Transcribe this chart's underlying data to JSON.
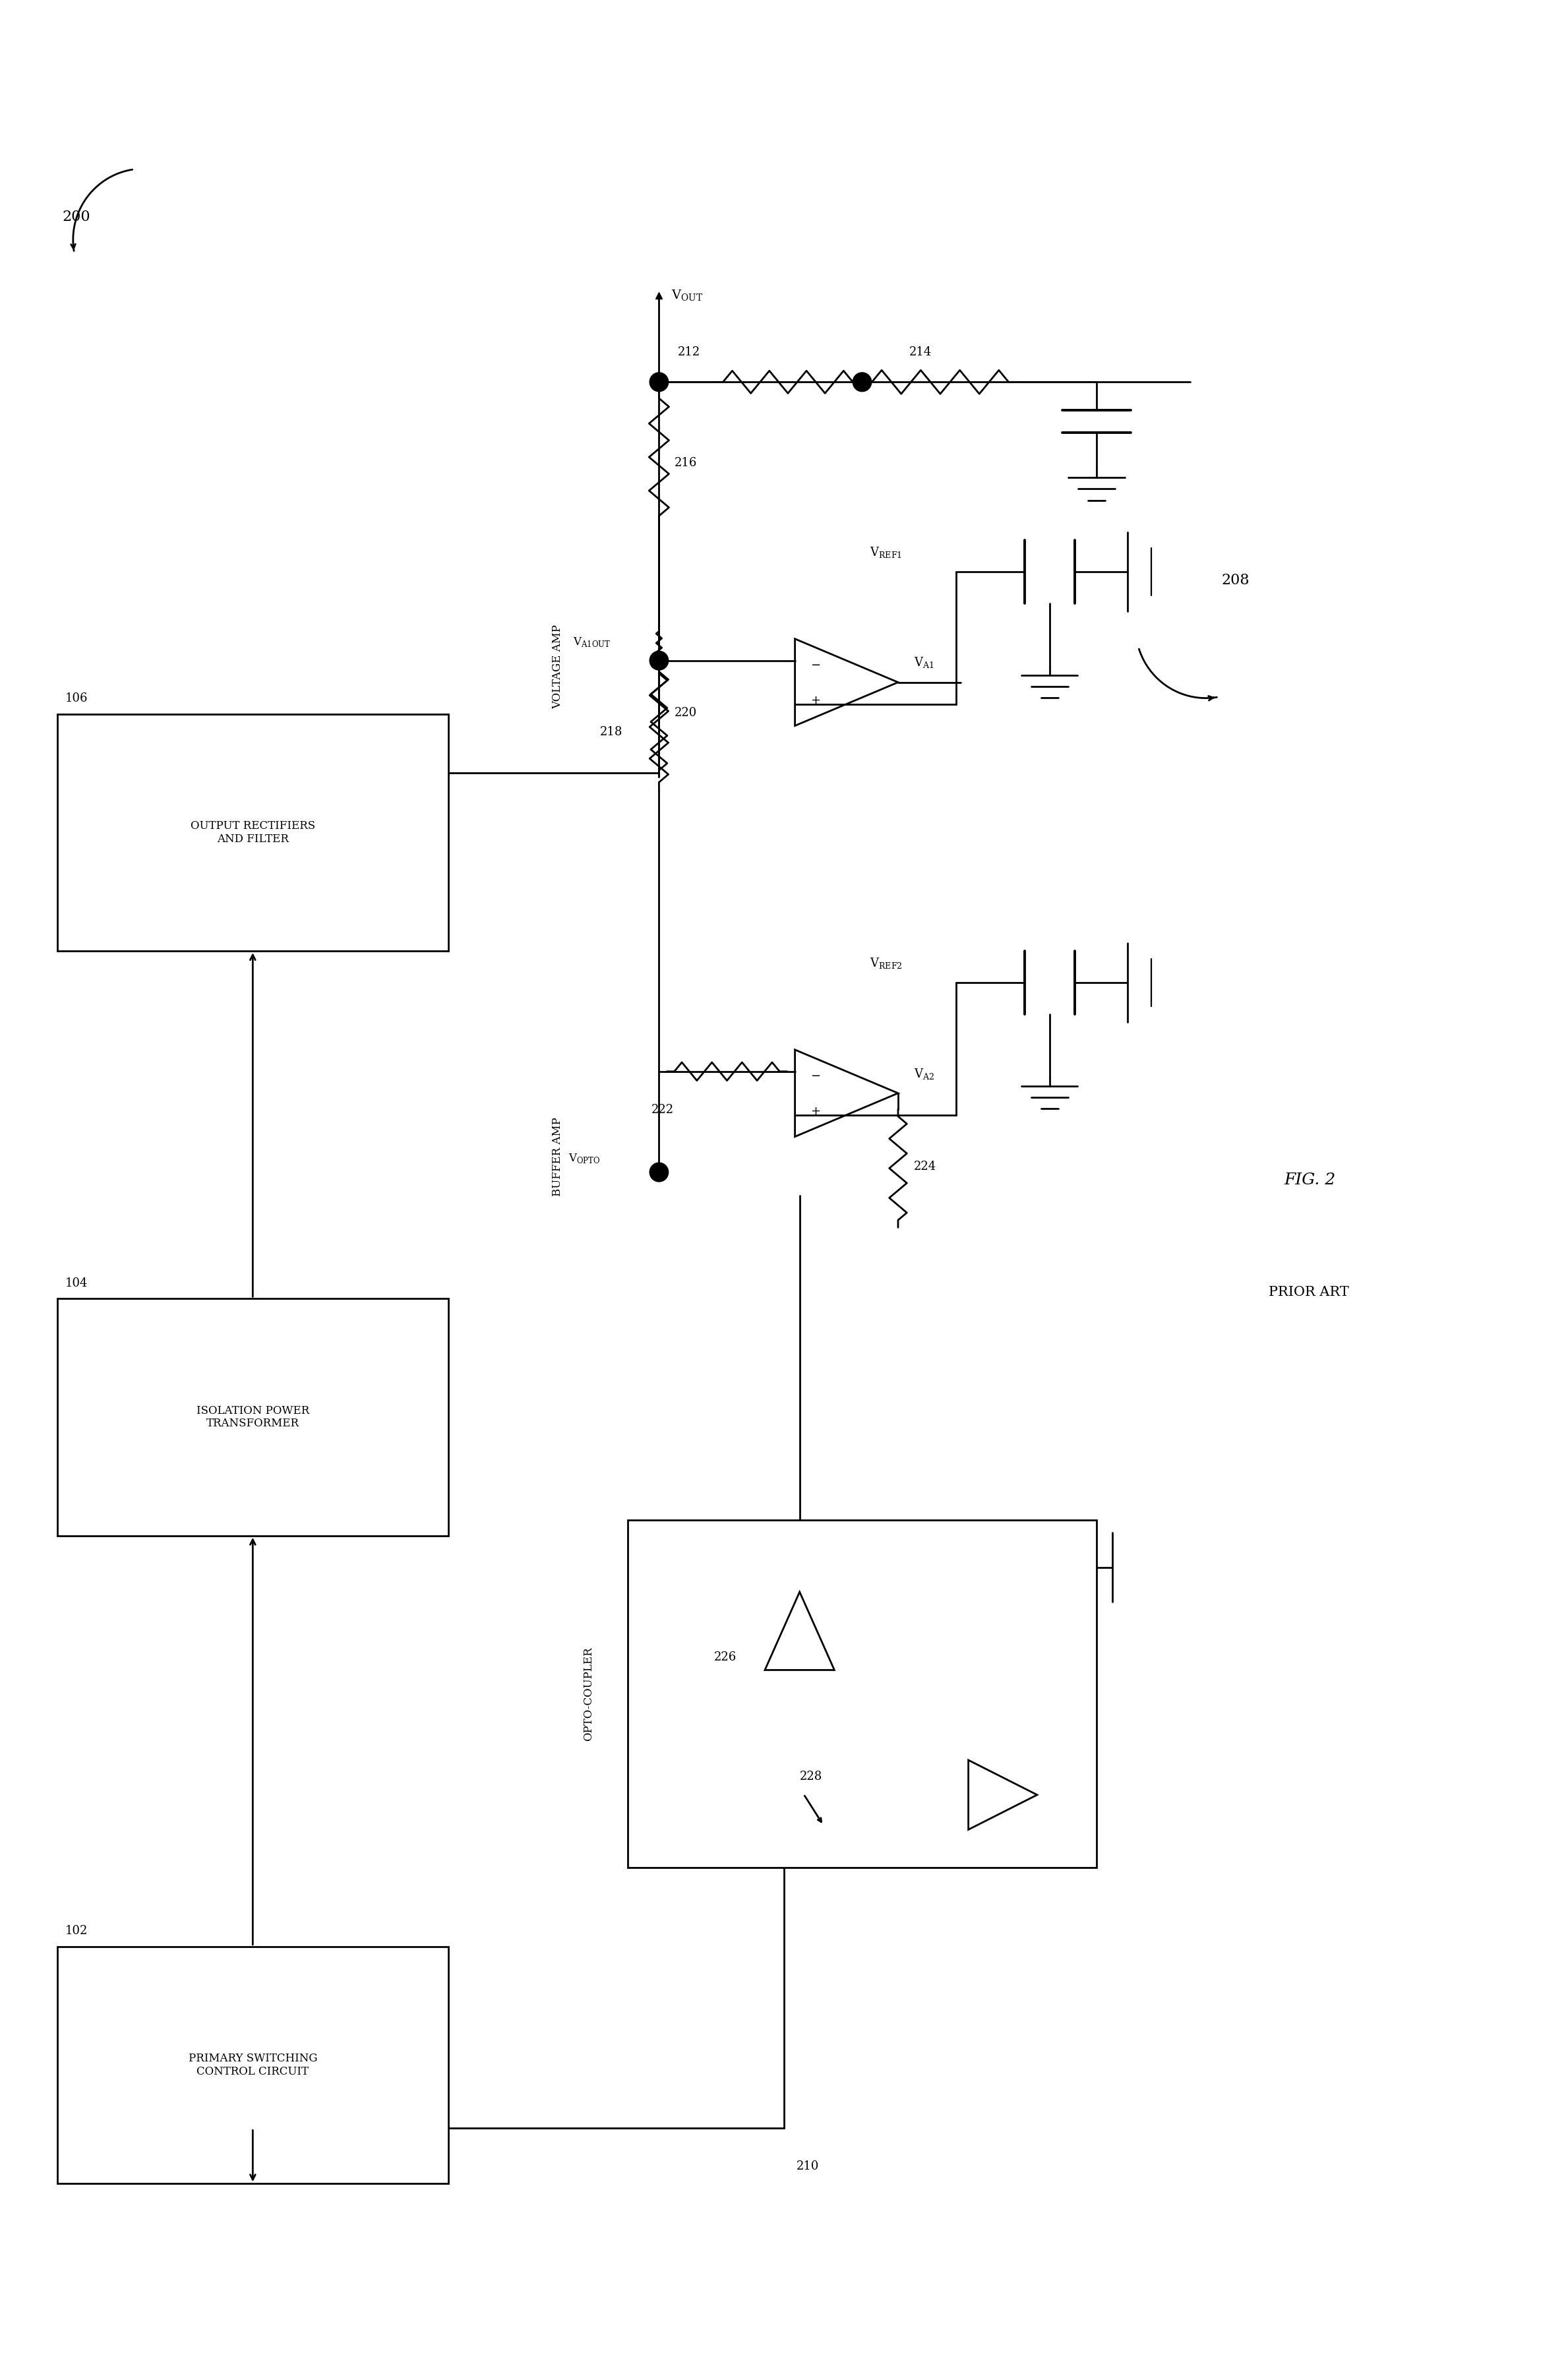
{
  "bg_color": "#ffffff",
  "lc": "#000000",
  "lw": 2.0,
  "fig_w": 23.78,
  "fig_h": 36.03,
  "font": "DejaVu Serif",
  "label_200": "200",
  "label_208": "208",
  "label_fig": "FIG. 2",
  "label_prior": "PRIOR ART",
  "box102": {
    "label": "PRIMARY SWITCHING\nCONTROL CIRCUIT",
    "ref": "102"
  },
  "box104": {
    "label": "ISOLATION POWER\nTRANSFORMER",
    "ref": "104"
  },
  "box106": {
    "label": "OUTPUT RECTIFIERS\nAND FILTER",
    "ref": "106"
  }
}
